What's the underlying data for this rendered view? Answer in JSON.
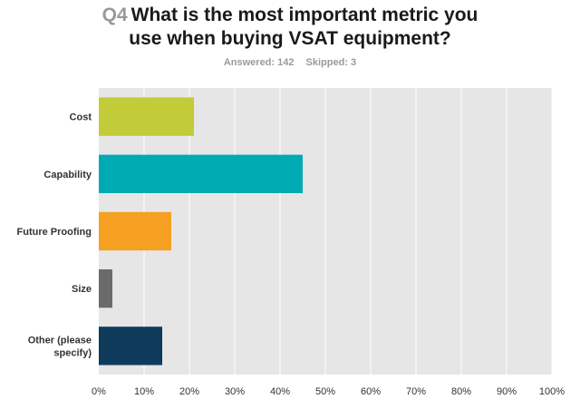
{
  "question": {
    "number": "Q4",
    "title_line1": "What is the most important metric you",
    "title_line2": "use when buying VSAT equipment?"
  },
  "stats": {
    "answered": "Answered: 142",
    "skipped": "Skipped: 3"
  },
  "colors": {
    "plot_background": "#e6e6e6",
    "gridline": "#ffffff",
    "text": "#333333"
  },
  "chart_data": {
    "type": "bar",
    "orientation": "horizontal",
    "categories": [
      "Cost",
      "Capability",
      "Future Proofing",
      "Size",
      "Other (please specify)"
    ],
    "category_lines": [
      [
        "Cost"
      ],
      [
        "Capability"
      ],
      [
        "Future Proofing"
      ],
      [
        "Size"
      ],
      [
        "Other (please",
        "specify)"
      ]
    ],
    "values": [
      21,
      45,
      16,
      3,
      14
    ],
    "unit": "%",
    "bar_colors": [
      "#c2cb38",
      "#00aab3",
      "#f5a021",
      "#6b6b6b",
      "#0e3a5c"
    ],
    "xlim": [
      0,
      100
    ],
    "xticks": [
      "0%",
      "10%",
      "20%",
      "30%",
      "40%",
      "50%",
      "60%",
      "70%",
      "80%",
      "90%",
      "100%"
    ],
    "grid": true
  }
}
